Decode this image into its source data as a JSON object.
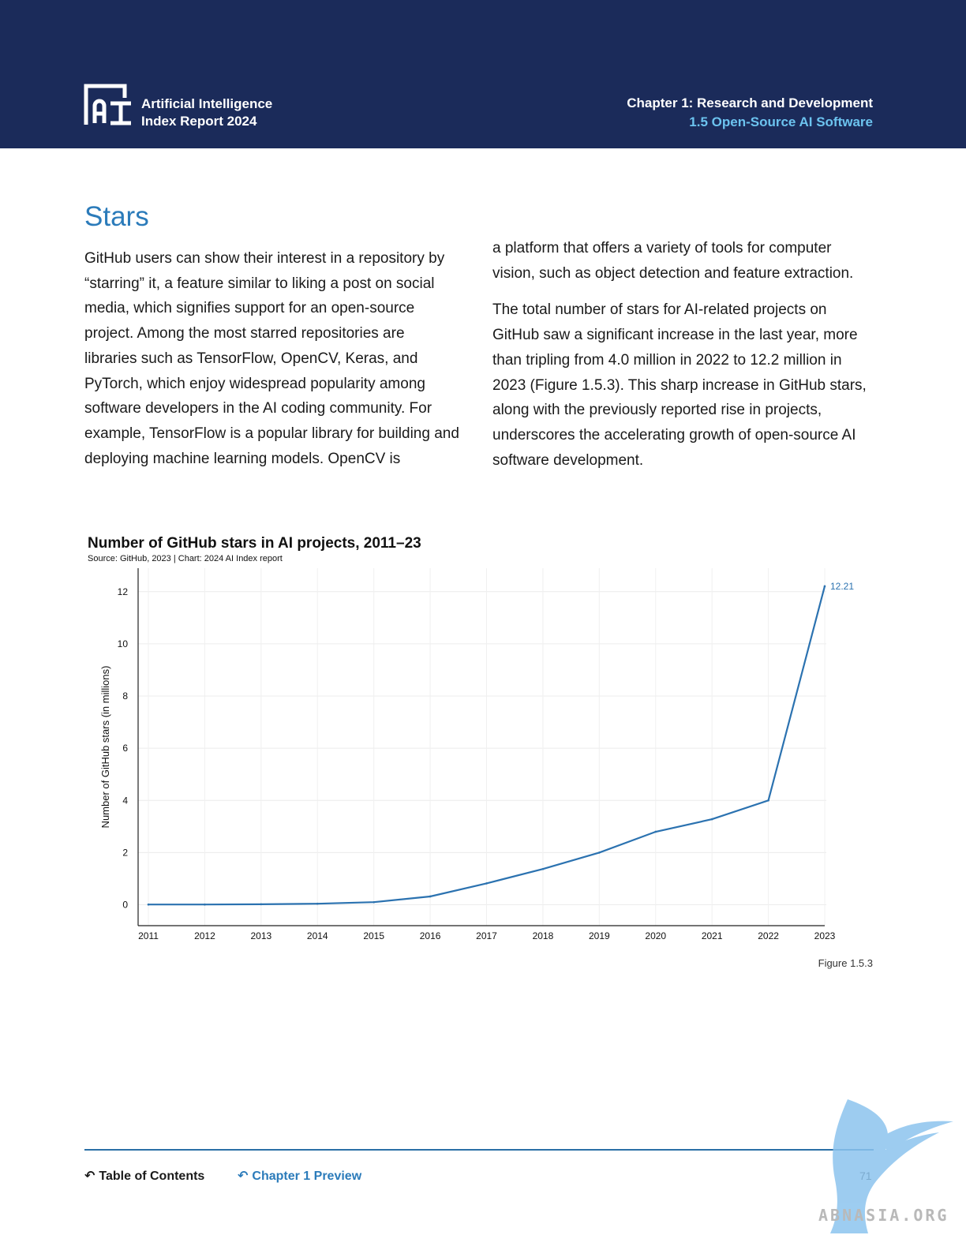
{
  "header": {
    "logo_line1": "Artificial Intelligence",
    "logo_line2": "Index Report 2024",
    "chapter_title": "Chapter 1: Research and Development",
    "chapter_section": "1.5 Open-Source AI Software"
  },
  "section": {
    "heading": "Stars",
    "left_paragraph": "GitHub users can show their interest in a repository by “starring” it, a feature similar to liking a post on social media, which signifies support for an open-source project. Among the most starred repositories are libraries such as TensorFlow, OpenCV, Keras, and PyTorch, which enjoy widespread popularity among software developers in the AI coding community. For example, TensorFlow is a popular library for building and deploying machine learning models. OpenCV is",
    "right_paragraph1": "a platform that offers a variety of tools for computer vision, such as object detection and feature extraction.",
    "right_paragraph2": "The total number of stars for AI-related projects on GitHub saw a significant increase in the last year, more than tripling from 4.0 million in 2022 to 12.2 million in 2023 (Figure 1.5.3). This sharp increase in GitHub stars, along with the previously reported rise in projects, underscores the accelerating growth of open-source AI software development."
  },
  "chart_data": {
    "type": "line",
    "title": "Number of GitHub stars in AI projects, 2011–23",
    "source": "Source: GitHub, 2023 | Chart: 2024 AI Index report",
    "xlabel": "",
    "ylabel": "Number of GitHub stars (in millions)",
    "x": [
      "2011",
      "2012",
      "2013",
      "2014",
      "2015",
      "2016",
      "2017",
      "2018",
      "2019",
      "2020",
      "2021",
      "2022",
      "2023"
    ],
    "series": [
      {
        "values": [
          0.01,
          0.01,
          0.02,
          0.04,
          0.1,
          0.32,
          0.82,
          1.37,
          2.0,
          2.8,
          3.28,
          4.0,
          12.21
        ]
      }
    ],
    "end_label": "12.21",
    "yticks": [
      0,
      2,
      4,
      6,
      8,
      10,
      12
    ],
    "ylim": [
      -0.8,
      12.9
    ],
    "grid": true,
    "line_color": "#2b72b0"
  },
  "figure_label": "Figure 1.5.3",
  "footer": {
    "toc_label": "Table of Contents",
    "chapter_label": "Chapter 1 Preview",
    "page_number": "71"
  },
  "watermark": {
    "text": "ABNASIA.ORG"
  }
}
